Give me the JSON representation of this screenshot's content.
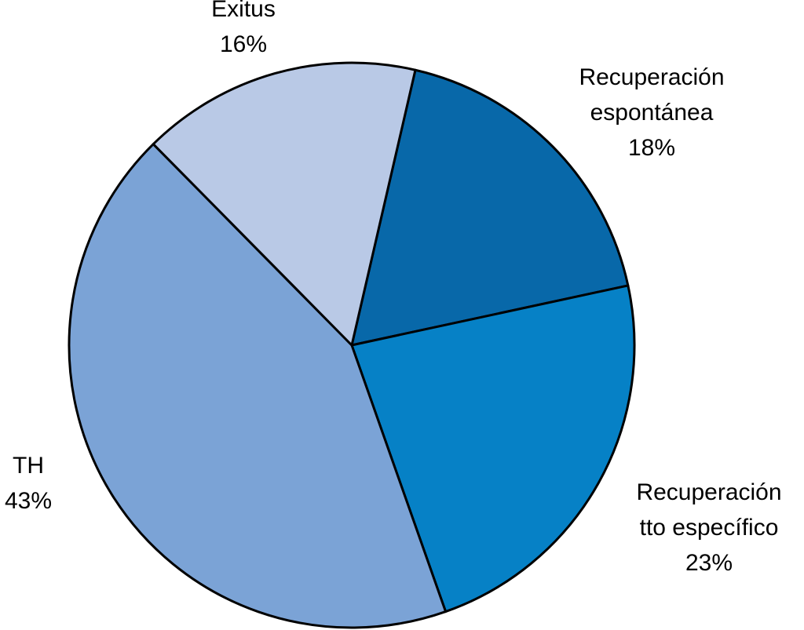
{
  "chart_data": {
    "type": "pie",
    "slices": [
      {
        "label": [
          "Recuperación",
          "espontánea"
        ],
        "value": 18,
        "value_label": "18%",
        "color": "#0868A9"
      },
      {
        "label": [
          "Recuperación",
          "tto específico"
        ],
        "value": 23,
        "value_label": "23%",
        "color": "#0681C6"
      },
      {
        "label": [
          "TH"
        ],
        "value": 43,
        "value_label": "43%",
        "color": "#7BA3D6"
      },
      {
        "label": [
          "Exitus"
        ],
        "value": 16,
        "value_label": "16%",
        "color": "#B9C9E6"
      }
    ]
  }
}
